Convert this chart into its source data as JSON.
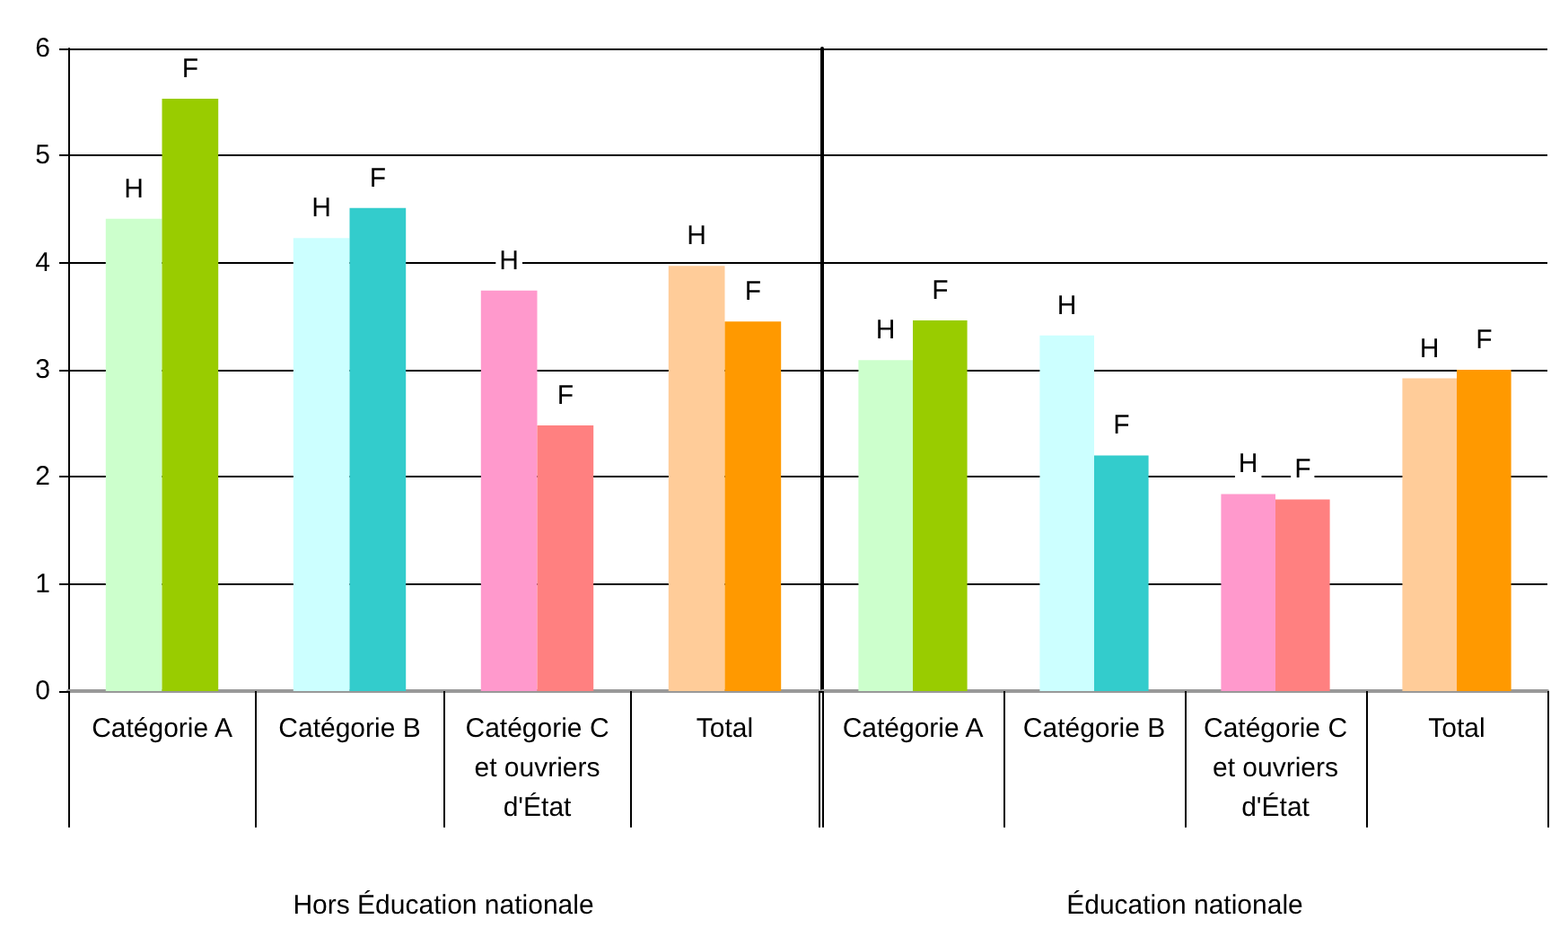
{
  "chart_data": [
    {
      "type": "bar",
      "categories": [
        "Catégorie A",
        "Catégorie B",
        "Catégorie C et ouvriers d'État",
        "Total"
      ],
      "xlabel": "Hors Éducation nationale",
      "ylim": [
        0,
        6
      ],
      "yticks": [
        0,
        1,
        2,
        3,
        4,
        5,
        6
      ],
      "grid": "y",
      "series": [
        {
          "name": "H",
          "colors": [
            "#ccffcc",
            "#ccffff",
            "#ff99cc",
            "#ffcc99"
          ],
          "values": [
            4.41,
            4.23,
            3.74,
            3.97
          ]
        },
        {
          "name": "F",
          "colors": [
            "#99cc00",
            "#33cccc",
            "#ff8080",
            "#ff9900"
          ],
          "values": [
            5.53,
            4.51,
            2.48,
            3.45
          ]
        }
      ]
    },
    {
      "type": "bar",
      "categories": [
        "Catégorie A",
        "Catégorie B",
        "Catégorie C et ouvriers d'État",
        "Total"
      ],
      "xlabel": "Éducation nationale",
      "ylim": [
        0,
        6
      ],
      "yticks": [
        0,
        1,
        2,
        3,
        4,
        5,
        6
      ],
      "grid": "y",
      "tick_labels": "x",
      "series": [
        {
          "name": "H",
          "colors": [
            "#ccffcc",
            "#ccffff",
            "#ff99cc",
            "#ffcc99"
          ],
          "values": [
            3.09,
            3.32,
            1.84,
            2.92
          ]
        },
        {
          "name": "F",
          "colors": [
            "#99cc00",
            "#33cccc",
            "#ff8080",
            "#ff9900"
          ],
          "values": [
            3.46,
            2.2,
            1.79,
            3.0
          ]
        }
      ]
    }
  ]
}
